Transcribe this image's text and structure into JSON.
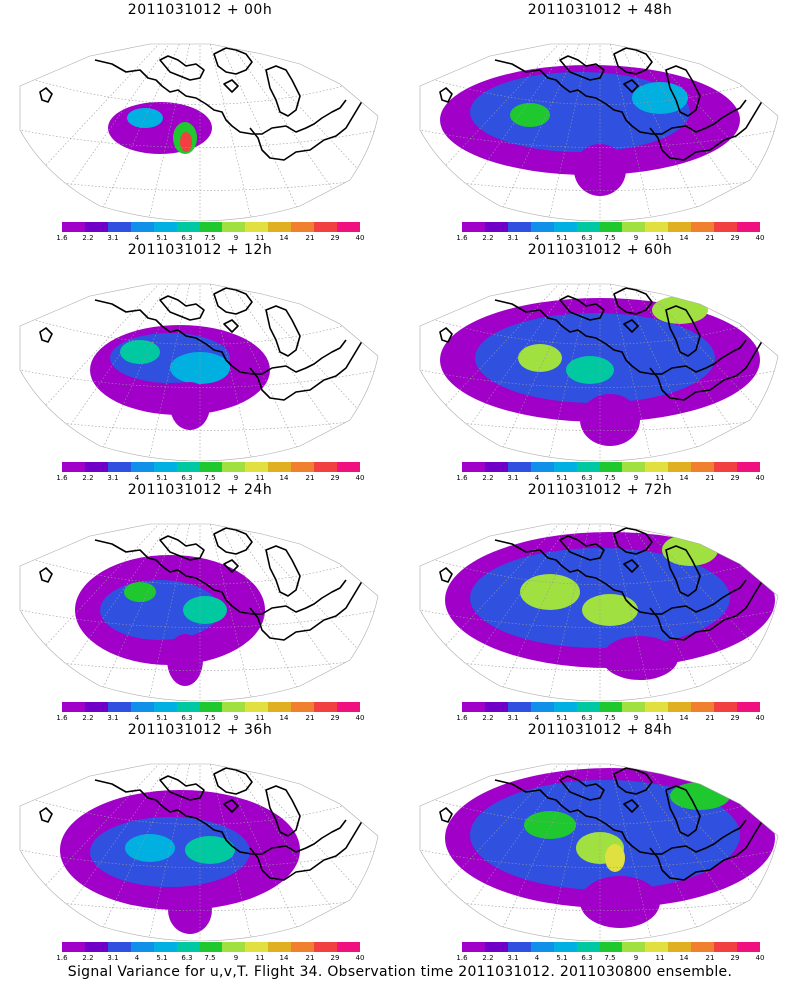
{
  "panels": [
    {
      "title": "2011031012 + 00h",
      "stage": 0
    },
    {
      "title": "2011031012 + 48h",
      "stage": 4
    },
    {
      "title": "2011031012 + 12h",
      "stage": 1
    },
    {
      "title": "2011031012 + 60h",
      "stage": 5
    },
    {
      "title": "2011031012 + 24h",
      "stage": 2
    },
    {
      "title": "2011031012 + 72h",
      "stage": 6
    },
    {
      "title": "2011031012 + 36h",
      "stage": 3
    },
    {
      "title": "2011031012 + 84h",
      "stage": 7
    }
  ],
  "colorbar": {
    "labels": [
      "1.6",
      "2.2",
      "3.1",
      "4",
      "5.1",
      "6.3",
      "7.5",
      "9",
      "11",
      "14",
      "21",
      "29",
      "40"
    ],
    "colors": [
      "#a000c8",
      "#7000c8",
      "#3050e0",
      "#1090e8",
      "#00b0e0",
      "#00c8a0",
      "#20c830",
      "#a0e040",
      "#e0e040",
      "#e0b020",
      "#f08030",
      "#f04040",
      "#f01080"
    ]
  },
  "caption": "Signal Variance for u,v,T. Flight 34. Observation time 2011031012. 2011030800 ensemble."
}
